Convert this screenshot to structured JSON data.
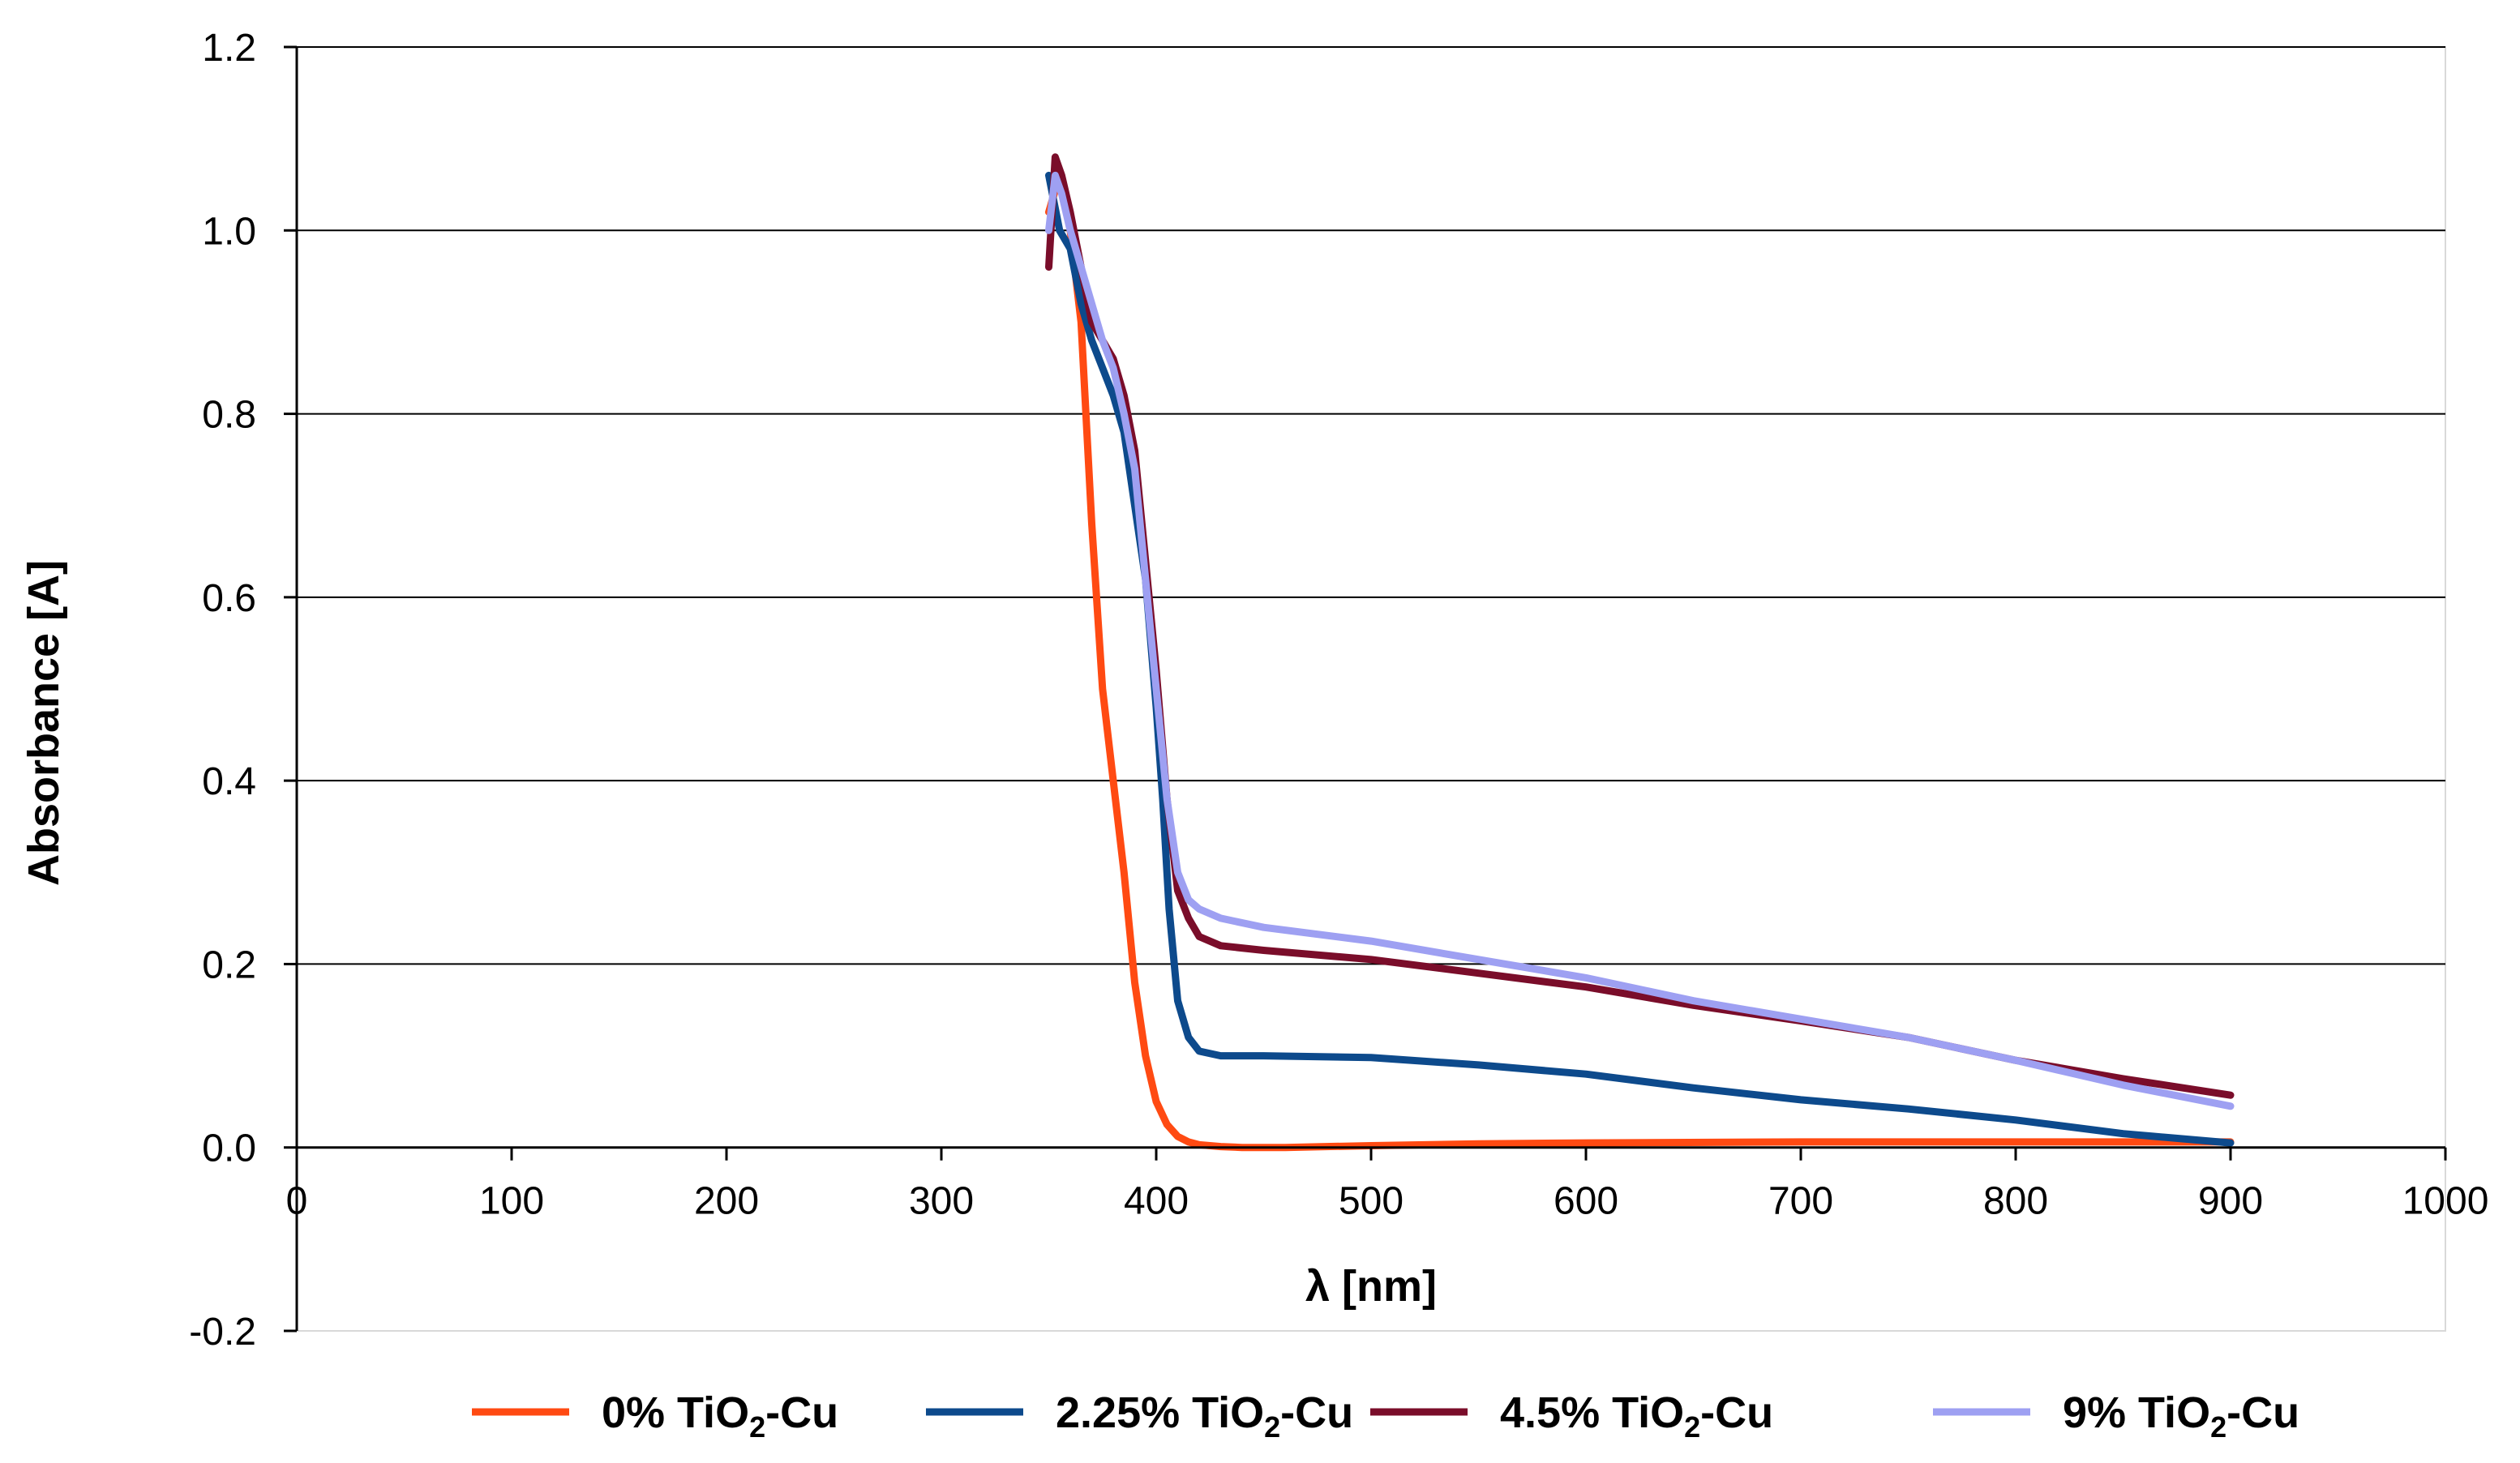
{
  "chart_data": {
    "type": "line",
    "title": "",
    "xlabel": "λ [nm]",
    "ylabel": "Absorbance  [A]",
    "xlim": [
      0,
      1000
    ],
    "ylim": [
      -0.2,
      1.2
    ],
    "x_ticks": [
      0,
      100,
      200,
      300,
      400,
      500,
      600,
      700,
      800,
      900,
      1000
    ],
    "x_tick_labels": [
      "0",
      "100",
      "200",
      "300",
      "400",
      "500",
      "600",
      "700",
      "800",
      "900",
      "1000"
    ],
    "y_ticks": [
      -0.2,
      0.0,
      0.2,
      0.4,
      0.6,
      0.8,
      1.0,
      1.2
    ],
    "y_tick_labels": [
      "-0.2",
      "0.0",
      "0.2",
      "0.4",
      "0.6",
      "0.8",
      "1.0",
      "1.2"
    ],
    "grid": "horizontal",
    "legend_position": "bottom",
    "series": [
      {
        "name": "0% TiO2-Cu",
        "label_prefix": "0% TiO",
        "label_sub": "2",
        "label_suffix": "-Cu",
        "color": "#ff4a12",
        "x": [
          350,
          355,
          360,
          365,
          370,
          375,
          380,
          385,
          390,
          395,
          400,
          405,
          410,
          415,
          420,
          430,
          440,
          460,
          500,
          550,
          600,
          700,
          800,
          900
        ],
        "y": [
          1.02,
          1.06,
          1.0,
          0.9,
          0.68,
          0.5,
          0.4,
          0.3,
          0.18,
          0.1,
          0.05,
          0.025,
          0.012,
          0.006,
          0.003,
          0.001,
          0.0,
          0.0,
          0.002,
          0.004,
          0.005,
          0.006,
          0.006,
          0.006
        ]
      },
      {
        "name": "2.25% TiO2-Cu",
        "label_prefix": "2.25% TiO",
        "label_sub": "2",
        "label_suffix": "-Cu",
        "color": "#0d4a8c",
        "x": [
          350,
          355,
          360,
          365,
          370,
          375,
          380,
          385,
          390,
          395,
          400,
          403,
          406,
          410,
          415,
          420,
          430,
          450,
          500,
          550,
          600,
          650,
          700,
          750,
          800,
          850,
          900
        ],
        "y": [
          1.06,
          1.0,
          0.98,
          0.92,
          0.88,
          0.85,
          0.82,
          0.78,
          0.7,
          0.62,
          0.48,
          0.38,
          0.26,
          0.16,
          0.12,
          0.105,
          0.1,
          0.1,
          0.098,
          0.09,
          0.08,
          0.065,
          0.052,
          0.042,
          0.03,
          0.015,
          0.005
        ]
      },
      {
        "name": "4.5% TiO2-Cu",
        "label_prefix": "4.5% TiO",
        "label_sub": "2",
        "label_suffix": "-Cu",
        "color": "#7a0d2a",
        "x": [
          350,
          353,
          356,
          360,
          365,
          370,
          375,
          380,
          385,
          390,
          395,
          400,
          405,
          410,
          415,
          420,
          430,
          450,
          500,
          550,
          600,
          650,
          700,
          750,
          800,
          850,
          900
        ],
        "y": [
          0.96,
          1.08,
          1.06,
          1.02,
          0.96,
          0.9,
          0.88,
          0.86,
          0.82,
          0.76,
          0.64,
          0.52,
          0.38,
          0.28,
          0.25,
          0.23,
          0.22,
          0.215,
          0.205,
          0.19,
          0.175,
          0.155,
          0.138,
          0.12,
          0.095,
          0.075,
          0.057
        ]
      },
      {
        "name": "9% TiO2-Cu",
        "label_prefix": "9% TiO",
        "label_sub": "2",
        "label_suffix": "-Cu",
        "color": "#9ea0f2",
        "x": [
          350,
          353,
          356,
          360,
          365,
          370,
          375,
          380,
          385,
          390,
          395,
          400,
          405,
          410,
          415,
          420,
          430,
          450,
          500,
          550,
          600,
          650,
          700,
          750,
          800,
          850,
          900
        ],
        "y": [
          1.0,
          1.06,
          1.04,
          1.0,
          0.96,
          0.92,
          0.88,
          0.85,
          0.8,
          0.74,
          0.62,
          0.5,
          0.38,
          0.3,
          0.27,
          0.26,
          0.25,
          0.24,
          0.225,
          0.205,
          0.185,
          0.16,
          0.14,
          0.12,
          0.095,
          0.068,
          0.045
        ]
      }
    ]
  }
}
